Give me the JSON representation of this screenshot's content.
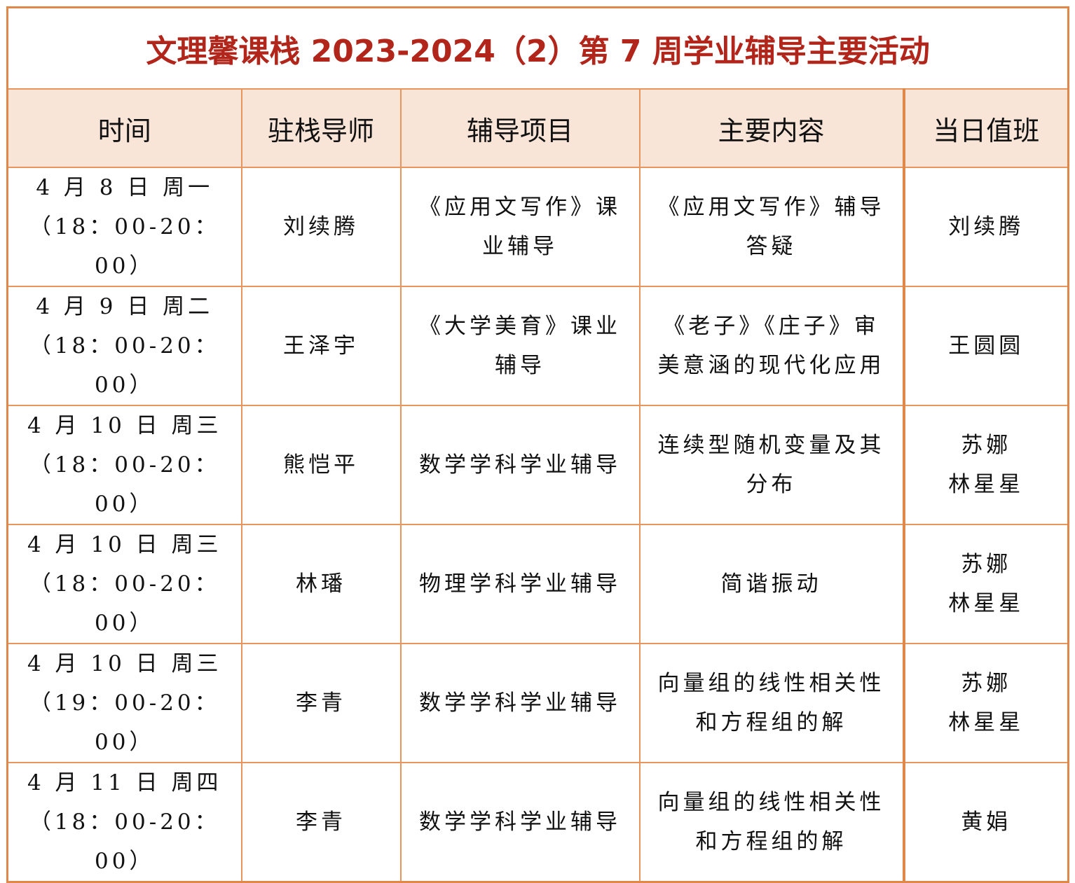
{
  "title": "文理馨课栈 2023-2024（2）第 7 周学业辅导主要活动",
  "colors": {
    "title": "#b1251a",
    "border": "#e0874a",
    "header_bg": "#f8e5d8"
  },
  "columns": [
    "时间",
    "驻栈导师",
    "辅导项目",
    "主要内容",
    "当日值班"
  ],
  "rows": [
    {
      "time": [
        "4 月 8 日  周一",
        "（18：00-20：00）"
      ],
      "tutor": "刘续腾",
      "project": [
        "《应用文写作》课",
        "业辅导"
      ],
      "content": [
        "《应用文写作》辅导",
        "答疑"
      ],
      "duty": [
        "刘续腾"
      ]
    },
    {
      "time": [
        "4 月 9 日  周二",
        "（18：00-20：00）"
      ],
      "tutor": "王泽宇",
      "project": [
        "《大学美育》课业",
        "辅导"
      ],
      "content": [
        "《老子》《庄子》审",
        "美意涵的现代化应用"
      ],
      "duty": [
        "王圆圆"
      ]
    },
    {
      "time": [
        "4 月 10 日  周三",
        "（18：00-20：00）"
      ],
      "tutor": "熊恺平",
      "project": [
        "数学学科学业辅导"
      ],
      "content": [
        "连续型随机变量及其",
        "分布"
      ],
      "duty": [
        "苏娜",
        "林星星"
      ]
    },
    {
      "time": [
        "4 月 10 日  周三",
        "（18：00-20：00）"
      ],
      "tutor": "林璠",
      "project": [
        "物理学科学业辅导"
      ],
      "content": [
        "简谐振动"
      ],
      "duty": [
        "苏娜",
        "林星星"
      ]
    },
    {
      "time": [
        "4 月 10 日  周三",
        "（19：00-20：00）"
      ],
      "tutor": "李青",
      "project": [
        "数学学科学业辅导"
      ],
      "content": [
        "向量组的线性相关性",
        "和方程组的解"
      ],
      "duty": [
        "苏娜",
        "林星星"
      ]
    },
    {
      "time": [
        "4 月 11 日  周四",
        "（18：00-20：00）"
      ],
      "tutor": "李青",
      "project": [
        "数学学科学业辅导"
      ],
      "content": [
        "向量组的线性相关性",
        "和方程组的解"
      ],
      "duty": [
        "黄娟"
      ]
    }
  ]
}
